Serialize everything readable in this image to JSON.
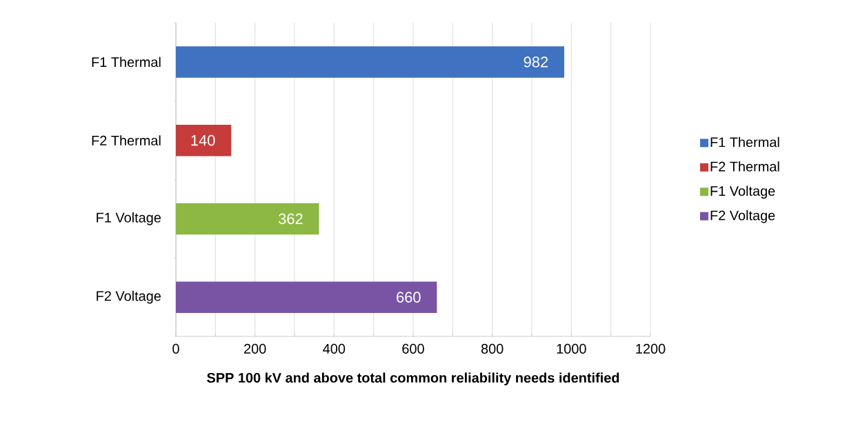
{
  "chart_data": {
    "type": "bar",
    "orientation": "horizontal",
    "xlabel": "SPP 100 kV and above total common reliability needs identified",
    "categories": [
      "F1 Thermal",
      "F2 Thermal",
      "F1 Voltage",
      "F2 Voltage"
    ],
    "series": [
      {
        "name": "F1 Thermal",
        "color": "#3f72c0",
        "values": [
          982,
          null,
          null,
          null
        ]
      },
      {
        "name": "F2 Thermal",
        "color": "#c63c3a",
        "values": [
          null,
          140,
          null,
          null
        ]
      },
      {
        "name": "F1 Voltage",
        "color": "#8cb843",
        "values": [
          null,
          null,
          362,
          null
        ]
      },
      {
        "name": "F2 Voltage",
        "color": "#7a54a4",
        "values": [
          null,
          null,
          null,
          660
        ]
      }
    ],
    "xlim": [
      0,
      1200
    ],
    "xticks": [
      0,
      {
        "value": 100,
        "label": null
      },
      200,
      {
        "value": 300,
        "label": null
      },
      400,
      {
        "value": 500,
        "label": null
      },
      600,
      {
        "value": 700,
        "label": null
      },
      800,
      {
        "value": 900,
        "label": null
      },
      1000,
      {
        "value": 1100,
        "label": null
      },
      1200
    ],
    "grid": "x",
    "legend": "right",
    "data_labels": true
  }
}
